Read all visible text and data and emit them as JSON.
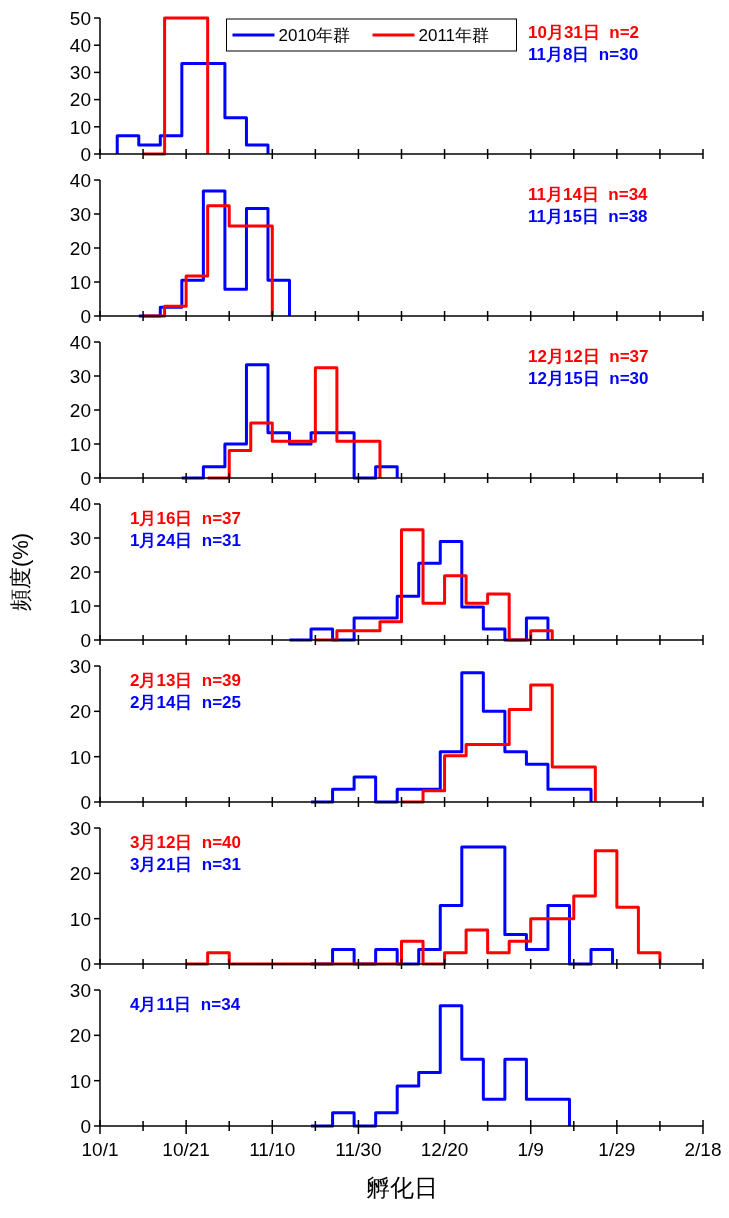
{
  "chart_data": [
    {
      "type": "step",
      "legend": "top",
      "xlim": [
        "2010-10-01",
        "2011-02-18"
      ],
      "xticks": [
        {
          "value": "2010-10-01",
          "label": null
        },
        {
          "value": "2010-10-11",
          "label": null
        },
        {
          "value": "2010-10-21",
          "label": null
        },
        {
          "value": "2010-10-31",
          "label": null
        },
        {
          "value": "2010-11-10",
          "label": null
        },
        {
          "value": "2010-11-20",
          "label": null
        },
        {
          "value": "2010-11-30",
          "label": null
        },
        {
          "value": "2010-12-10",
          "label": null
        },
        {
          "value": "2010-12-20",
          "label": null
        },
        {
          "value": "2010-12-30",
          "label": null
        },
        {
          "value": "2011-01-09",
          "label": null
        },
        {
          "value": "2011-01-19",
          "label": null
        },
        {
          "value": "2011-01-29",
          "label": null
        },
        {
          "value": "2011-02-08",
          "label": null
        },
        {
          "value": "2011-02-18",
          "label": null
        }
      ],
      "ylim": [
        0,
        50
      ],
      "yticks": [
        0,
        10,
        20,
        30,
        40,
        50
      ],
      "tick_labels": "y",
      "annotations": [
        "10月31日  n=2",
        "11月8日  n=30"
      ],
      "series": [
        {
          "name": "2010年群",
          "color": "#0000ff",
          "x": [
            "2010-10-05",
            "2010-10-05",
            "2010-10-10",
            "2010-10-15",
            "2010-10-20",
            "2010-10-25",
            "2010-10-30",
            "2010-11-04",
            "2010-11-09"
          ],
          "values": [
            0,
            6.7,
            3.3,
            6.7,
            33.3,
            33.3,
            13.3,
            3.3,
            0
          ]
        },
        {
          "name": "2011年群",
          "color": "#ff0000",
          "x": [
            "2010-10-11",
            "2010-10-16",
            "2010-10-21",
            "2010-10-26"
          ],
          "values": [
            0,
            50,
            50,
            0
          ]
        }
      ]
    },
    {
      "type": "step",
      "xlim": [
        "2010-10-01",
        "2011-02-18"
      ],
      "xticks": [
        {
          "value": "2010-10-01",
          "label": null
        },
        {
          "value": "2010-10-11",
          "label": null
        },
        {
          "value": "2010-10-21",
          "label": null
        },
        {
          "value": "2010-10-31",
          "label": null
        },
        {
          "value": "2010-11-10",
          "label": null
        },
        {
          "value": "2010-11-20",
          "label": null
        },
        {
          "value": "2010-11-30",
          "label": null
        },
        {
          "value": "2010-12-10",
          "label": null
        },
        {
          "value": "2010-12-20",
          "label": null
        },
        {
          "value": "2010-12-30",
          "label": null
        },
        {
          "value": "2011-01-09",
          "label": null
        },
        {
          "value": "2011-01-19",
          "label": null
        },
        {
          "value": "2011-01-29",
          "label": null
        },
        {
          "value": "2011-02-08",
          "label": null
        },
        {
          "value": "2011-02-18",
          "label": null
        }
      ],
      "ylim": [
        0,
        40
      ],
      "yticks": [
        0,
        10,
        20,
        30,
        40
      ],
      "tick_labels": "y",
      "annotations": [
        "11月14日  n=34",
        "11月15日  n=38"
      ],
      "series": [
        {
          "color": "#0000ff",
          "x": [
            "2010-10-10",
            "2010-10-15",
            "2010-10-20",
            "2010-10-25",
            "2010-10-30",
            "2010-11-04",
            "2010-11-09",
            "2010-11-14"
          ],
          "values": [
            0,
            2.6,
            10.5,
            36.8,
            7.9,
            31.6,
            10.5,
            0
          ]
        },
        {
          "color": "#ff0000",
          "x": [
            "2010-10-11",
            "2010-10-16",
            "2010-10-21",
            "2010-10-26",
            "2010-10-31",
            "2010-11-05",
            "2010-11-10"
          ],
          "values": [
            0,
            2.9,
            11.8,
            32.4,
            26.5,
            26.5,
            0
          ]
        }
      ]
    },
    {
      "type": "step",
      "xlim": [
        "2010-10-01",
        "2011-02-18"
      ],
      "xticks": [
        {
          "value": "2010-10-01",
          "label": null
        },
        {
          "value": "2010-10-11",
          "label": null
        },
        {
          "value": "2010-10-21",
          "label": null
        },
        {
          "value": "2010-10-31",
          "label": null
        },
        {
          "value": "2010-11-10",
          "label": null
        },
        {
          "value": "2010-11-20",
          "label": null
        },
        {
          "value": "2010-11-30",
          "label": null
        },
        {
          "value": "2010-12-10",
          "label": null
        },
        {
          "value": "2010-12-20",
          "label": null
        },
        {
          "value": "2010-12-30",
          "label": null
        },
        {
          "value": "2011-01-09",
          "label": null
        },
        {
          "value": "2011-01-19",
          "label": null
        },
        {
          "value": "2011-01-29",
          "label": null
        },
        {
          "value": "2011-02-08",
          "label": null
        },
        {
          "value": "2011-02-18",
          "label": null
        }
      ],
      "ylim": [
        0,
        40
      ],
      "yticks": [
        0,
        10,
        20,
        30,
        40
      ],
      "tick_labels": "y",
      "annotations": [
        "12月12日  n=37",
        "12月15日  n=30"
      ],
      "series": [
        {
          "color": "#0000ff",
          "x": [
            "2010-10-20",
            "2010-10-25",
            "2010-10-30",
            "2010-11-04",
            "2010-11-09",
            "2010-11-14",
            "2010-11-19",
            "2010-11-24",
            "2010-11-29",
            "2010-12-04",
            "2010-12-09"
          ],
          "values": [
            0,
            3.3,
            10,
            33.3,
            13.3,
            10,
            13.3,
            13.3,
            0,
            3.3,
            0
          ]
        },
        {
          "color": "#ff0000",
          "x": [
            "2010-10-26",
            "2010-10-31",
            "2010-11-05",
            "2010-11-10",
            "2010-11-15",
            "2010-11-20",
            "2010-11-25",
            "2010-11-30",
            "2010-12-05"
          ],
          "values": [
            0,
            8.1,
            16.2,
            10.8,
            10.8,
            32.4,
            10.8,
            10.8,
            0
          ]
        }
      ]
    },
    {
      "type": "step",
      "ylabel": "頻度(%)",
      "xlim": [
        "2010-10-01",
        "2011-02-18"
      ],
      "xticks": [
        {
          "value": "2010-10-01",
          "label": null
        },
        {
          "value": "2010-10-11",
          "label": null
        },
        {
          "value": "2010-10-21",
          "label": null
        },
        {
          "value": "2010-10-31",
          "label": null
        },
        {
          "value": "2010-11-10",
          "label": null
        },
        {
          "value": "2010-11-20",
          "label": null
        },
        {
          "value": "2010-11-30",
          "label": null
        },
        {
          "value": "2010-12-10",
          "label": null
        },
        {
          "value": "2010-12-20",
          "label": null
        },
        {
          "value": "2010-12-30",
          "label": null
        },
        {
          "value": "2011-01-09",
          "label": null
        },
        {
          "value": "2011-01-19",
          "label": null
        },
        {
          "value": "2011-01-29",
          "label": null
        },
        {
          "value": "2011-02-08",
          "label": null
        },
        {
          "value": "2011-02-18",
          "label": null
        }
      ],
      "ylim": [
        0,
        40
      ],
      "yticks": [
        0,
        10,
        20,
        30,
        40
      ],
      "tick_labels": "y",
      "annotations": [
        "1月16日  n=37",
        "1月24日  n=31"
      ],
      "series": [
        {
          "color": "#0000ff",
          "x": [
            "2010-11-14",
            "2010-11-19",
            "2010-11-24",
            "2010-11-29",
            "2010-12-04",
            "2010-12-09",
            "2010-12-14",
            "2010-12-19",
            "2010-12-24",
            "2010-12-29",
            "2011-01-03",
            "2011-01-08",
            "2011-01-13"
          ],
          "values": [
            0,
            3.2,
            0,
            6.5,
            6.5,
            12.9,
            22.6,
            29,
            9.7,
            3.2,
            0,
            6.5,
            0
          ]
        },
        {
          "color": "#ff0000",
          "x": [
            "2010-11-20",
            "2010-11-25",
            "2010-11-30",
            "2010-12-05",
            "2010-12-10",
            "2010-12-15",
            "2010-12-20",
            "2010-12-25",
            "2010-12-30",
            "2011-01-04",
            "2011-01-09",
            "2011-01-14"
          ],
          "values": [
            0,
            2.7,
            2.7,
            5.4,
            32.4,
            10.8,
            18.9,
            10.8,
            13.5,
            0,
            2.7,
            0
          ]
        }
      ]
    },
    {
      "type": "step",
      "xlim": [
        "2010-10-01",
        "2011-02-18"
      ],
      "xticks": [
        {
          "value": "2010-10-01",
          "label": null
        },
        {
          "value": "2010-10-11",
          "label": null
        },
        {
          "value": "2010-10-21",
          "label": null
        },
        {
          "value": "2010-10-31",
          "label": null
        },
        {
          "value": "2010-11-10",
          "label": null
        },
        {
          "value": "2010-11-20",
          "label": null
        },
        {
          "value": "2010-11-30",
          "label": null
        },
        {
          "value": "2010-12-10",
          "label": null
        },
        {
          "value": "2010-12-20",
          "label": null
        },
        {
          "value": "2010-12-30",
          "label": null
        },
        {
          "value": "2011-01-09",
          "label": null
        },
        {
          "value": "2011-01-19",
          "label": null
        },
        {
          "value": "2011-01-29",
          "label": null
        },
        {
          "value": "2011-02-08",
          "label": null
        },
        {
          "value": "2011-02-18",
          "label": null
        }
      ],
      "ylim": [
        0,
        30
      ],
      "yticks": [
        0,
        10,
        20,
        30
      ],
      "tick_labels": "y",
      "annotations": [
        "2月13日  n=39",
        "2月14日  n=25"
      ],
      "series": [
        {
          "color": "#0000ff",
          "x": [
            "2010-11-19",
            "2010-11-24",
            "2010-11-29",
            "2010-12-04",
            "2010-12-09",
            "2010-12-14",
            "2010-12-19",
            "2010-12-24",
            "2010-12-29",
            "2011-01-03",
            "2011-01-08",
            "2011-01-13",
            "2011-01-18",
            "2011-01-23"
          ],
          "values": [
            0,
            2.8,
            5.5,
            0,
            2.8,
            2.8,
            11.1,
            28.5,
            20,
            11.1,
            8.3,
            2.8,
            2.8,
            0
          ]
        },
        {
          "color": "#ff0000",
          "x": [
            "2010-12-10",
            "2010-12-15",
            "2010-12-20",
            "2010-12-25",
            "2010-12-30",
            "2011-01-04",
            "2011-01-09",
            "2011-01-14",
            "2011-01-19",
            "2011-01-24"
          ],
          "values": [
            0,
            2.5,
            10.2,
            12.7,
            12.7,
            20.4,
            25.8,
            7.7,
            7.7,
            0
          ]
        }
      ]
    },
    {
      "type": "step",
      "xlim": [
        "2010-10-01",
        "2011-02-18"
      ],
      "xticks": [
        {
          "value": "2010-10-01",
          "label": null
        },
        {
          "value": "2010-10-11",
          "label": null
        },
        {
          "value": "2010-10-21",
          "label": null
        },
        {
          "value": "2010-10-31",
          "label": null
        },
        {
          "value": "2010-11-10",
          "label": null
        },
        {
          "value": "2010-11-20",
          "label": null
        },
        {
          "value": "2010-11-30",
          "label": null
        },
        {
          "value": "2010-12-10",
          "label": null
        },
        {
          "value": "2010-12-20",
          "label": null
        },
        {
          "value": "2010-12-30",
          "label": null
        },
        {
          "value": "2011-01-09",
          "label": null
        },
        {
          "value": "2011-01-19",
          "label": null
        },
        {
          "value": "2011-01-29",
          "label": null
        },
        {
          "value": "2011-02-08",
          "label": null
        },
        {
          "value": "2011-02-18",
          "label": null
        }
      ],
      "ylim": [
        0,
        30
      ],
      "yticks": [
        0,
        10,
        20,
        30
      ],
      "tick_labels": "y",
      "annotations": [
        "3月12日  n=40",
        "3月21日  n=31"
      ],
      "series": [
        {
          "color": "#0000ff",
          "x": [
            "2010-11-19",
            "2010-11-24",
            "2010-11-29",
            "2010-12-04",
            "2010-12-09",
            "2010-12-14",
            "2010-12-19",
            "2010-12-24",
            "2010-12-29",
            "2011-01-03",
            "2011-01-08",
            "2011-01-13",
            "2011-01-18",
            "2011-01-23",
            "2011-01-28"
          ],
          "values": [
            0,
            3.2,
            0,
            3.2,
            0,
            3.2,
            12.9,
            25.8,
            25.8,
            6.5,
            3.2,
            12.9,
            0,
            3.2,
            0
          ]
        },
        {
          "color": "#ff0000",
          "x": [
            "2010-10-21",
            "2010-10-26",
            "2010-10-31",
            "2010-12-10",
            "2010-12-15",
            "2010-12-20",
            "2010-12-25",
            "2010-12-30",
            "2011-01-04",
            "2011-01-09",
            "2011-01-14",
            "2011-01-19",
            "2011-01-24",
            "2011-01-29",
            "2011-02-03",
            "2011-02-08"
          ],
          "values": [
            0,
            2.5,
            0,
            5,
            0,
            2.5,
            7.5,
            2.5,
            5,
            10,
            10,
            15,
            25,
            12.5,
            2.5,
            0
          ]
        }
      ]
    },
    {
      "type": "step",
      "xlabel": "孵化日",
      "xlim": [
        "2010-10-01",
        "2011-02-18"
      ],
      "xticks": [
        {
          "value": "2010-10-01",
          "label": "10/1"
        },
        {
          "value": "2010-10-11",
          "label": null
        },
        {
          "value": "2010-10-21",
          "label": "10/21"
        },
        {
          "value": "2010-10-31",
          "label": null
        },
        {
          "value": "2010-11-10",
          "label": "11/10"
        },
        {
          "value": "2010-11-20",
          "label": null
        },
        {
          "value": "2010-11-30",
          "label": "11/30"
        },
        {
          "value": "2010-12-10",
          "label": null
        },
        {
          "value": "2010-12-20",
          "label": "12/20"
        },
        {
          "value": "2010-12-30",
          "label": null
        },
        {
          "value": "2011-01-09",
          "label": "1/9"
        },
        {
          "value": "2011-01-19",
          "label": null
        },
        {
          "value": "2011-01-29",
          "label": "1/29"
        },
        {
          "value": "2011-02-08",
          "label": null
        },
        {
          "value": "2011-02-18",
          "label": "2/18"
        }
      ],
      "ylim": [
        0,
        30
      ],
      "yticks": [
        0,
        10,
        20,
        30
      ],
      "annotations": [
        "4月11日  n=34"
      ],
      "series": [
        {
          "color": "#0000ff",
          "x": [
            "2010-11-19",
            "2010-11-24",
            "2010-11-29",
            "2010-12-04",
            "2010-12-09",
            "2010-12-14",
            "2010-12-19",
            "2010-12-24",
            "2010-12-29",
            "2011-01-03",
            "2011-01-08",
            "2011-01-13",
            "2011-01-18"
          ],
          "values": [
            0,
            2.9,
            0,
            2.9,
            8.8,
            11.8,
            26.5,
            14.7,
            5.9,
            14.7,
            5.9,
            5.9,
            0
          ]
        }
      ]
    }
  ]
}
